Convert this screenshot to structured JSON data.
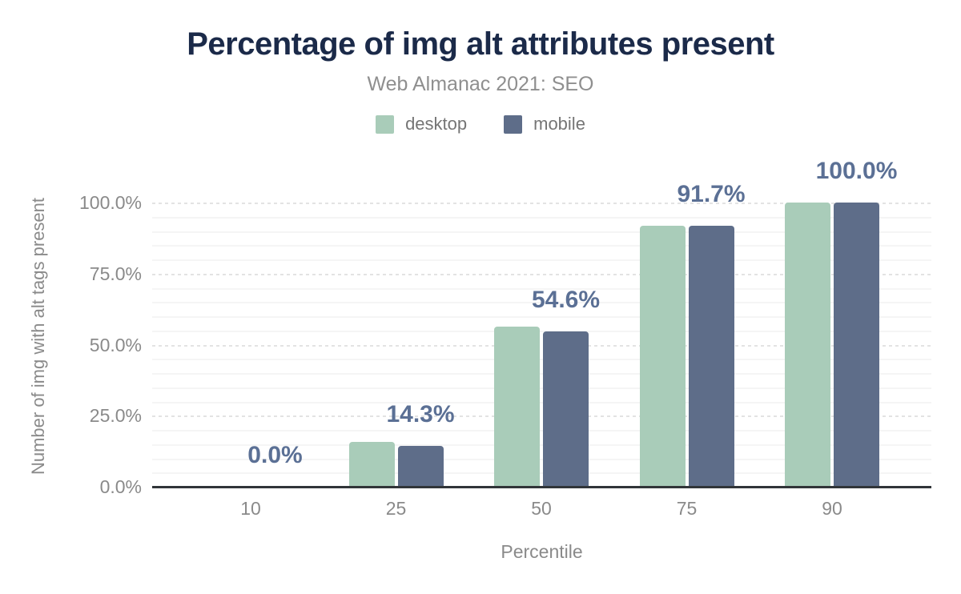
{
  "chart": {
    "title": "Percentage of img alt attributes present",
    "subtitle": "Web Almanac 2021: SEO",
    "y_axis_title": "Number of img with alt tags present",
    "x_axis_title": "Percentile",
    "legend": [
      {
        "label": "desktop"
      },
      {
        "label": "mobile"
      }
    ]
  },
  "chart_data": {
    "type": "bar",
    "title": "Percentage of img alt attributes present",
    "subtitle": "Web Almanac 2021: SEO",
    "xlabel": "Percentile",
    "ylabel": "Number of img with alt tags present",
    "categories": [
      "10",
      "25",
      "50",
      "75",
      "90"
    ],
    "series": [
      {
        "name": "desktop",
        "color": "#a9ccb9",
        "values": [
          0.0,
          15.9,
          56.3,
          91.9,
          100.0
        ]
      },
      {
        "name": "mobile",
        "color": "#5e6d89",
        "values": [
          0.0,
          14.3,
          54.6,
          91.7,
          100.0
        ]
      }
    ],
    "value_labels": [
      "0.0%",
      "14.3%",
      "54.6%",
      "91.7%",
      "100.0%"
    ],
    "value_labels_source": "mobile",
    "y_ticks": [
      "0.0%",
      "25.0%",
      "50.0%",
      "75.0%",
      "100.0%"
    ],
    "ylim": [
      0,
      100
    ],
    "grid": {
      "minor_step_pct": 5,
      "major_step_pct": 25
    },
    "legend_position": "top"
  },
  "colors": {
    "background": "#ffffff",
    "title": "#1b2a49",
    "subtitle": "#8f8f8f",
    "legend_text": "#757575",
    "axis_text": "#8a8a8a",
    "desktop_bar": "#a9ccb9",
    "mobile_bar": "#5e6d89",
    "value_label": "#5b7095",
    "axis_line": "#313539",
    "grid_minor": "#f5f5f5",
    "grid_major": "#e3e3e3"
  }
}
